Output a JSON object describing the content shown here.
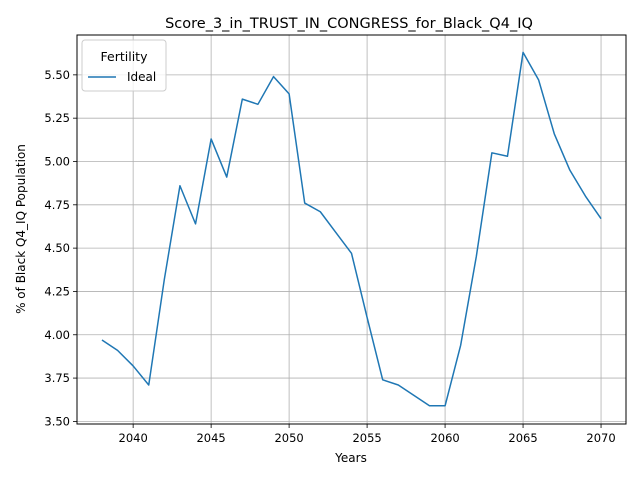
{
  "chart_data": {
    "type": "line",
    "title": "Score_3_in_TRUST_IN_CONGRESS_for_Black_Q4_IQ",
    "xlabel": "Years",
    "ylabel": "% of Black Q4_IQ Population",
    "xlim": [
      2036.4,
      2071.6
    ],
    "ylim": [
      3.485,
      5.73
    ],
    "x_ticks": [
      2040,
      2045,
      2050,
      2055,
      2060,
      2065,
      2070
    ],
    "y_ticks": [
      3.5,
      3.75,
      4.0,
      4.25,
      4.5,
      4.75,
      5.0,
      5.25,
      5.5
    ],
    "grid": true,
    "legend": {
      "title": "Fertility",
      "position": "top-left"
    },
    "series": [
      {
        "name": "Ideal",
        "color": "#1f77b4",
        "x": [
          2038,
          2039,
          2040,
          2041,
          2042,
          2043,
          2044,
          2045,
          2046,
          2047,
          2048,
          2049,
          2050,
          2051,
          2052,
          2053,
          2054,
          2055,
          2056,
          2057,
          2058,
          2059,
          2060,
          2061,
          2062,
          2063,
          2064,
          2065,
          2066,
          2067,
          2068,
          2069,
          2070
        ],
        "y": [
          3.97,
          3.91,
          3.82,
          3.71,
          4.32,
          4.86,
          4.64,
          5.13,
          4.91,
          5.36,
          5.33,
          5.49,
          5.39,
          4.76,
          4.71,
          4.59,
          4.47,
          4.1,
          3.74,
          3.71,
          3.65,
          3.59,
          3.59,
          3.94,
          4.45,
          5.05,
          5.03,
          5.63,
          5.47,
          5.16,
          4.95,
          4.8,
          4.67
        ]
      }
    ]
  }
}
